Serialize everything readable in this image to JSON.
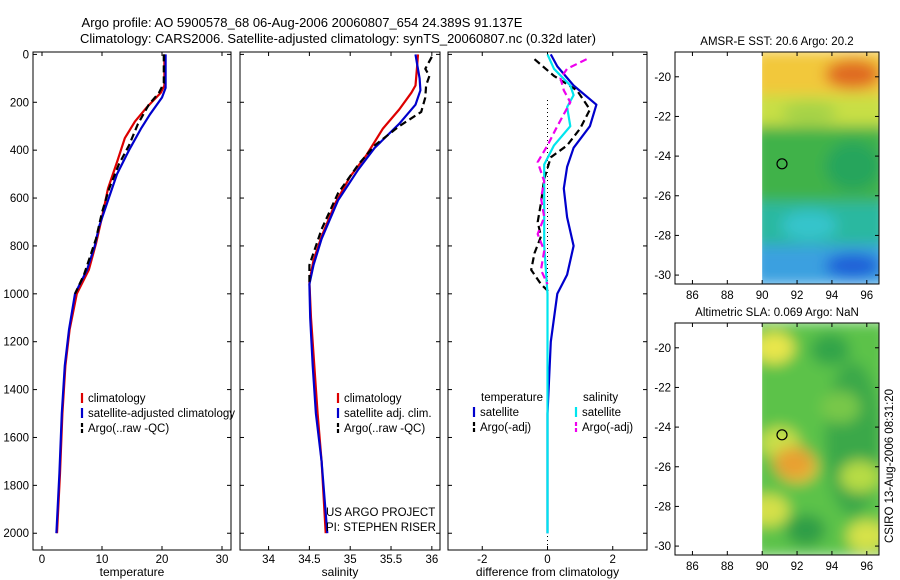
{
  "header": {
    "line1": "Argo profile: AO 5900578_68 06-Aug-2006 20060807_654 24.389S 91.137E",
    "line2": "Climatology: CARS2006. Satellite-adjusted climatology: synTS_20060807.nc (0.32d later)"
  },
  "credit": "CSIRO 13-Aug-2006 08:31:20",
  "colors": {
    "red": "#dd0000",
    "blue": "#0000cc",
    "black": "#000000",
    "cyan": "#00e5ee",
    "magenta": "#ee00ee"
  },
  "chart_data": [
    {
      "type": "line",
      "id": "temperature",
      "xlabel": "temperature",
      "xlim": [
        -1.5,
        31.5
      ],
      "ylim": [
        -10,
        2070
      ],
      "xticks": [
        0,
        10,
        20,
        30
      ],
      "yticks": [
        0,
        200,
        400,
        600,
        800,
        1000,
        1200,
        1400,
        1600,
        1800,
        2000
      ],
      "legend": [
        "climatology",
        "satellite-adjusted climatology",
        "Argo(..raw -QC)"
      ],
      "series": [
        {
          "name": "climatology",
          "color": "red",
          "dash": "",
          "points": [
            [
              20.4,
              0
            ],
            [
              20.4,
              130
            ],
            [
              19.8,
              160
            ],
            [
              17.5,
              220
            ],
            [
              15.5,
              280
            ],
            [
              13.8,
              350
            ],
            [
              12.5,
              450
            ],
            [
              11.0,
              560
            ],
            [
              10.0,
              680
            ],
            [
              9.0,
              790
            ],
            [
              7.8,
              900
            ],
            [
              5.8,
              1000
            ],
            [
              4.6,
              1150
            ],
            [
              3.9,
              1300
            ],
            [
              3.4,
              1500
            ],
            [
              3.0,
              1750
            ],
            [
              2.7,
              1900
            ],
            [
              2.5,
              2000
            ]
          ]
        },
        {
          "name": "satellite-adjusted climatology",
          "color": "blue",
          "dash": "",
          "points": [
            [
              20.6,
              0
            ],
            [
              20.6,
              140
            ],
            [
              20.0,
              180
            ],
            [
              18.0,
              250
            ],
            [
              16.5,
              310
            ],
            [
              14.5,
              400
            ],
            [
              12.5,
              500
            ],
            [
              11.0,
              610
            ],
            [
              9.5,
              720
            ],
            [
              8.8,
              800
            ],
            [
              7.5,
              900
            ],
            [
              5.5,
              1000
            ],
            [
              4.5,
              1150
            ],
            [
              3.8,
              1300
            ],
            [
              3.3,
              1500
            ],
            [
              2.9,
              1750
            ],
            [
              2.6,
              1900
            ],
            [
              2.4,
              2000
            ]
          ]
        },
        {
          "name": "Argo(..raw -QC)",
          "color": "black",
          "dash": "7,4",
          "points": [
            [
              20.3,
              0
            ],
            [
              20.3,
              120
            ],
            [
              19.5,
              160
            ],
            [
              17.8,
              210
            ],
            [
              16.0,
              290
            ],
            [
              14.5,
              380
            ],
            [
              12.8,
              460
            ],
            [
              11.2,
              560
            ],
            [
              10.0,
              660
            ],
            [
              9.0,
              770
            ],
            [
              7.0,
              920
            ],
            [
              5.5,
              1000
            ]
          ]
        }
      ]
    },
    {
      "type": "line",
      "id": "salinity",
      "xlabel": "salinity",
      "xlim": [
        33.65,
        36.1
      ],
      "ylim": [
        -10,
        2070
      ],
      "xticks": [
        34,
        34.5,
        35,
        35.5,
        36
      ],
      "yticks": [
        0,
        200,
        400,
        600,
        800,
        1000,
        1200,
        1400,
        1600,
        1800,
        2000
      ],
      "legend": [
        "climatology",
        "satellite adj. clim.",
        "Argo(..raw -QC)"
      ],
      "annotation": [
        "US ARGO PROJECT",
        "PI: STEPHEN RISER"
      ],
      "series": [
        {
          "name": "climatology",
          "color": "red",
          "dash": "",
          "points": [
            [
              35.83,
              0
            ],
            [
              35.82,
              50
            ],
            [
              35.8,
              130
            ],
            [
              35.75,
              160
            ],
            [
              35.6,
              230
            ],
            [
              35.4,
              310
            ],
            [
              35.2,
              420
            ],
            [
              35.0,
              510
            ],
            [
              34.82,
              620
            ],
            [
              34.65,
              760
            ],
            [
              34.55,
              860
            ],
            [
              34.5,
              950
            ],
            [
              34.52,
              1100
            ],
            [
              34.56,
              1300
            ],
            [
              34.6,
              1500
            ],
            [
              34.65,
              1700
            ],
            [
              34.7,
              2000
            ]
          ]
        },
        {
          "name": "satellite adj. clim.",
          "color": "blue",
          "dash": "",
          "points": [
            [
              35.8,
              0
            ],
            [
              35.82,
              40
            ],
            [
              35.85,
              100
            ],
            [
              35.86,
              150
            ],
            [
              35.8,
              210
            ],
            [
              35.6,
              290
            ],
            [
              35.3,
              390
            ],
            [
              35.1,
              480
            ],
            [
              34.85,
              610
            ],
            [
              34.65,
              770
            ],
            [
              34.55,
              880
            ],
            [
              34.5,
              960
            ],
            [
              34.51,
              1100
            ],
            [
              34.54,
              1300
            ],
            [
              34.58,
              1500
            ],
            [
              34.65,
              1700
            ],
            [
              34.72,
              2000
            ]
          ]
        },
        {
          "name": "Argo(..raw -QC)",
          "color": "black",
          "dash": "7,4",
          "points": [
            [
              36.0,
              10
            ],
            [
              35.92,
              60
            ],
            [
              35.97,
              90
            ],
            [
              35.93,
              130
            ],
            [
              35.92,
              180
            ],
            [
              35.87,
              240
            ],
            [
              35.6,
              300
            ],
            [
              35.3,
              380
            ],
            [
              35.1,
              460
            ],
            [
              34.85,
              580
            ],
            [
              34.65,
              730
            ],
            [
              34.5,
              880
            ],
            [
              34.5,
              950
            ]
          ]
        }
      ]
    },
    {
      "type": "line",
      "id": "difference",
      "xlabel": "difference from climatology",
      "xlim": [
        -3.05,
        3.05
      ],
      "ylim": [
        -10,
        2070
      ],
      "xticks": [
        -2,
        0,
        2
      ],
      "yticks": [
        0,
        200,
        400,
        600,
        800,
        1000,
        1200,
        1400,
        1600,
        1800,
        2000
      ],
      "legend_left": {
        "header": "temperature",
        "items": [
          "satellite",
          "Argo(-adj)"
        ]
      },
      "legend_right": {
        "header": "salinity",
        "items": [
          "satellite",
          "Argo(-adj)"
        ]
      },
      "series": [
        {
          "name": "temperature satellite",
          "color": "blue",
          "dash": "",
          "points": [
            [
              0.1,
              0
            ],
            [
              0.3,
              50
            ],
            [
              0.8,
              130
            ],
            [
              1.5,
              210
            ],
            [
              1.3,
              300
            ],
            [
              0.8,
              390
            ],
            [
              0.6,
              470
            ],
            [
              0.5,
              560
            ],
            [
              0.6,
              680
            ],
            [
              0.8,
              800
            ],
            [
              0.6,
              920
            ],
            [
              0.3,
              1000
            ],
            [
              0.1,
              1200
            ],
            [
              0.0,
              1500
            ],
            [
              0.0,
              2000
            ]
          ]
        },
        {
          "name": "temperature Argo(-adj)",
          "color": "black",
          "dash": "7,4",
          "points": [
            [
              -0.4,
              20
            ],
            [
              0.2,
              90
            ],
            [
              0.9,
              150
            ],
            [
              1.3,
              230
            ],
            [
              1.0,
              310
            ],
            [
              0.6,
              380
            ],
            [
              0.1,
              430
            ],
            [
              -0.1,
              520
            ],
            [
              -0.2,
              620
            ],
            [
              -0.3,
              700
            ],
            [
              -0.2,
              760
            ],
            [
              -0.4,
              830
            ],
            [
              -0.5,
              900
            ],
            [
              -0.2,
              960
            ],
            [
              0.1,
              1000
            ]
          ]
        },
        {
          "name": "salinity satellite",
          "color": "cyan",
          "dash": "",
          "points": [
            [
              0.0,
              0
            ],
            [
              0.2,
              60
            ],
            [
              0.7,
              130
            ],
            [
              0.8,
              170
            ],
            [
              0.6,
              220
            ],
            [
              0.7,
              300
            ],
            [
              0.2,
              380
            ],
            [
              -0.1,
              460
            ],
            [
              -0.1,
              560
            ],
            [
              -0.1,
              680
            ],
            [
              -0.1,
              800
            ],
            [
              0.0,
              1000
            ],
            [
              0.0,
              1200
            ],
            [
              0.0,
              1500
            ],
            [
              0.0,
              2000
            ]
          ]
        },
        {
          "name": "salinity Argo(-adj)",
          "color": "magenta",
          "dash": "7,4",
          "points": [
            [
              1.2,
              20
            ],
            [
              0.6,
              60
            ],
            [
              0.4,
              100
            ],
            [
              0.5,
              150
            ],
            [
              0.7,
              200
            ],
            [
              0.3,
              300
            ],
            [
              0.0,
              380
            ],
            [
              -0.3,
              450
            ],
            [
              -0.1,
              530
            ],
            [
              -0.2,
              600
            ],
            [
              -0.1,
              680
            ],
            [
              -0.3,
              750
            ],
            [
              -0.1,
              820
            ],
            [
              -0.2,
              900
            ],
            [
              0.0,
              960
            ]
          ]
        }
      ]
    },
    {
      "type": "heatmap",
      "id": "sst",
      "title": "AMSR-E SST: 20.6 Argo: 20.2",
      "xlim": [
        85,
        96.7
      ],
      "ylim": [
        -30.45,
        -18.75
      ],
      "xticks": [
        86,
        88,
        90,
        92,
        94,
        96
      ],
      "yticks": [
        -20,
        -22,
        -24,
        -26,
        -28,
        -30
      ],
      "data_extent": [
        90,
        96.7
      ],
      "marker": {
        "lon": 91.137,
        "lat": -24.389
      },
      "bands": [
        {
          "lat": [
            -18.75,
            -21.0
          ],
          "color": "#f2c83a",
          "accent": "#e06a22"
        },
        {
          "lat": [
            -21.0,
            -22.6
          ],
          "color": "#c8df44",
          "accent": "#a4d246"
        },
        {
          "lat": [
            -22.6,
            -26.4
          ],
          "color": "#3fb24a",
          "accent": "#27a55c"
        },
        {
          "lat": [
            -26.4,
            -28.6
          ],
          "color": "#2bb8a0",
          "accent": "#36c4cc"
        },
        {
          "lat": [
            -28.6,
            -30.45
          ],
          "color": "#3aa0e0",
          "accent": "#1f5fd8"
        }
      ]
    },
    {
      "type": "heatmap",
      "id": "sla",
      "title": "Altimetric SLA: 0.069 Argo: NaN",
      "xlim": [
        85,
        96.7
      ],
      "ylim": [
        -30.45,
        -18.75
      ],
      "xticks": [
        86,
        88,
        90,
        92,
        94,
        96
      ],
      "yticks": [
        -20,
        -22,
        -24,
        -26,
        -28,
        -30
      ],
      "data_extent": [
        90,
        96.7
      ],
      "marker": {
        "lon": 91.137,
        "lat": -24.389
      },
      "bands": [
        {
          "lat": [
            -18.75,
            -30.45
          ],
          "color": "#5cc24a",
          "accent": "#3aa84a"
        }
      ],
      "blobs": [
        {
          "lon": 90.7,
          "lat": -20.0,
          "color": "#e9e64c"
        },
        {
          "lon": 91.0,
          "lat": -24.8,
          "color": "#c9df48"
        },
        {
          "lon": 92.0,
          "lat": -26.0,
          "color": "#f2c83a"
        },
        {
          "lon": 91.8,
          "lat": -25.8,
          "color": "#e8a033"
        },
        {
          "lon": 95.6,
          "lat": -26.5,
          "color": "#b7dc44"
        },
        {
          "lon": 93.9,
          "lat": -20.1,
          "color": "#33a44a"
        },
        {
          "lon": 92.5,
          "lat": -29.2,
          "color": "#2f9e47"
        },
        {
          "lon": 96.0,
          "lat": -29.5,
          "color": "#d7e24a"
        },
        {
          "lon": 90.4,
          "lat": -28.2,
          "color": "#d5e04a"
        },
        {
          "lon": 94.5,
          "lat": -23.0,
          "color": "#78c84a"
        }
      ]
    }
  ]
}
